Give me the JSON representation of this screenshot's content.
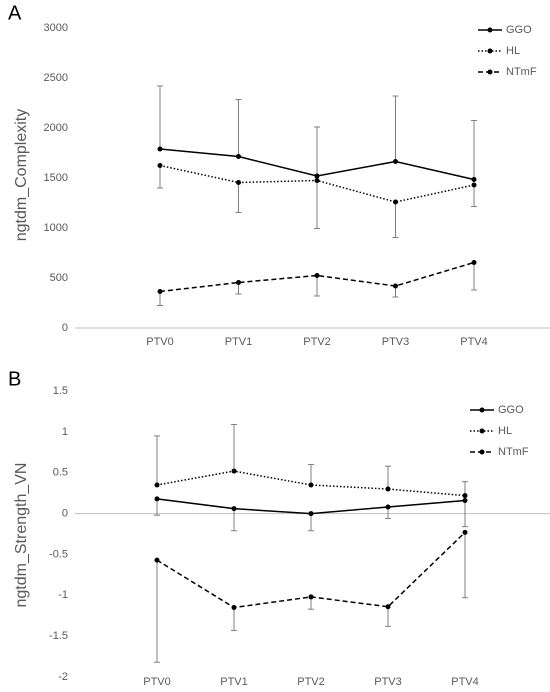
{
  "chart_data": [
    {
      "type": "line",
      "panel_label": "A",
      "y_label": "ngtdm_Complexity",
      "categories": [
        "PTV0",
        "PTV1",
        "PTV2",
        "PTV3",
        "PTV4"
      ],
      "ylim": [
        0,
        3000
      ],
      "yticks": [
        0,
        500,
        1000,
        1500,
        2000,
        2500,
        3000
      ],
      "legend": "upper right",
      "series": [
        {
          "name": "GGO",
          "color": "#000000",
          "dash": "solid",
          "error_direction": "up",
          "values": [
            1790,
            1715,
            1520,
            1665,
            1485
          ],
          "errors": [
            630,
            570,
            490,
            655,
            590
          ]
        },
        {
          "name": "HL",
          "color": "#000000",
          "dash": "dotted",
          "error_direction": "down",
          "values": [
            1625,
            1455,
            1475,
            1260,
            1430
          ],
          "errors": [
            225,
            300,
            480,
            355,
            215
          ]
        },
        {
          "name": "NTmF",
          "color": "#000000",
          "dash": "dashed",
          "error_direction": "down",
          "values": [
            365,
            455,
            525,
            420,
            655
          ],
          "errors": [
            140,
            115,
            205,
            110,
            275
          ]
        }
      ]
    },
    {
      "type": "line",
      "panel_label": "B",
      "y_label": "ngtdm_Strength_VN",
      "categories": [
        "PTV0",
        "PTV1",
        "PTV2",
        "PTV3",
        "PTV4"
      ],
      "ylim": [
        -2,
        1.5
      ],
      "yticks": [
        -2,
        -1.5,
        -1,
        -0.5,
        0,
        0.5,
        1,
        1.5
      ],
      "legend": "upper right",
      "series": [
        {
          "name": "GGO",
          "color": "#000000",
          "dash": "solid",
          "error_direction": "down",
          "values": [
            0.18,
            0.06,
            0.0,
            0.08,
            0.16
          ],
          "errors": [
            0.2,
            0.27,
            0.21,
            0.14,
            0.32
          ]
        },
        {
          "name": "HL",
          "color": "#000000",
          "dash": "dotted",
          "error_direction": "up",
          "values": [
            0.35,
            0.52,
            0.35,
            0.3,
            0.22
          ],
          "errors": [
            0.6,
            0.57,
            0.25,
            0.28,
            0.17
          ]
        },
        {
          "name": "NTmF",
          "color": "#000000",
          "dash": "dashed",
          "error_direction": "down",
          "values": [
            -0.57,
            -1.15,
            -1.02,
            -1.14,
            -0.23
          ],
          "errors": [
            1.25,
            0.28,
            0.15,
            0.24,
            0.8
          ]
        }
      ]
    }
  ]
}
